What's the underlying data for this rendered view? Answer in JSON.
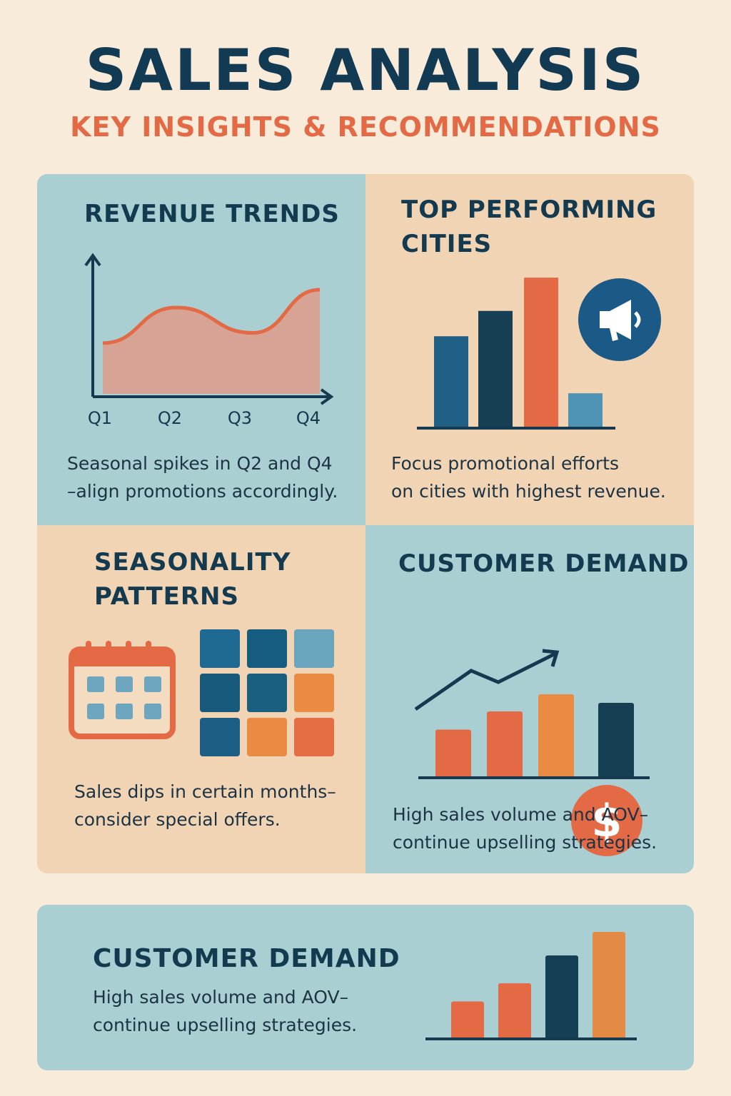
{
  "header": {
    "title": "SALES ANALYSIS",
    "subtitle": "KEY INSIGHTS & RECOMMENDATIONS"
  },
  "panels": {
    "revenue_trends": {
      "title": "REVENUE TRENDS",
      "caption_line1": "Seasonal spikes in Q2 and Q4",
      "caption_line2": "–align promotions accordingly.",
      "chart_data": {
        "type": "area",
        "categories": [
          "Q1",
          "Q2",
          "Q3",
          "Q4"
        ],
        "values": [
          40,
          68,
          48,
          82
        ],
        "color": "#e36a45"
      }
    },
    "top_cities": {
      "title_line1": "TOP PERFORMING",
      "title_line2": "CITIES",
      "caption_line1": "Focus promotional efforts",
      "caption_line2": "on cities with highest revenue.",
      "icon": "megaphone-icon",
      "chart_data": {
        "type": "bar",
        "values": [
          58,
          74,
          95,
          22
        ],
        "colors": [
          "#1f5f86",
          "#173f53",
          "#e36a45",
          "#4f93b4"
        ]
      }
    },
    "seasonality": {
      "title_line1": "SEASONALITY",
      "title_line2": "PATTERNS",
      "caption_line1": "Sales dips in certain months–",
      "caption_line2": "consider special offers.",
      "icon": "calendar-icon",
      "heatmap_colors": [
        "#1e6a92",
        "#165c80",
        "#6aa4bd",
        "#175a7c",
        "#1a5f80",
        "#e98b43",
        "#1d5e84",
        "#e98b43",
        "#e56d44"
      ]
    },
    "customer_demand": {
      "title": "CUSTOMER DEMAND",
      "caption_line1": "High sales volume and AOV–",
      "caption_line2": "continue upselling strategies.",
      "icon": "dollar-icon",
      "chart_data": {
        "type": "bar",
        "values": [
          45,
          62,
          78,
          70
        ],
        "colors": [
          "#e36a45",
          "#e36a45",
          "#e98b43",
          "#173f53"
        ]
      }
    }
  },
  "bottom": {
    "title": "CUSTOMER DEMAND",
    "caption_line1": "High sales volume and AOV–",
    "caption_line2": "continue upselling strategies.",
    "chart_data": {
      "type": "bar",
      "values": [
        35,
        52,
        78,
        100
      ],
      "colors": [
        "#e36a45",
        "#e36a45",
        "#143f55",
        "#e38b45"
      ]
    }
  }
}
